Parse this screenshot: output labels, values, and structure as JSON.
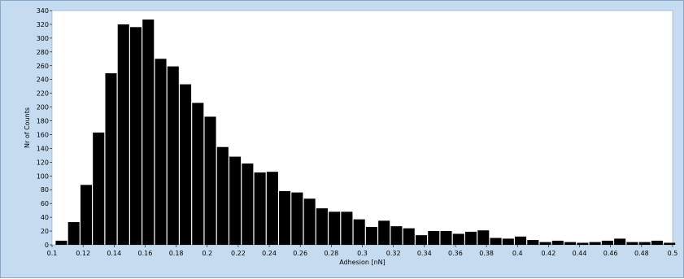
{
  "chart_data": {
    "type": "bar",
    "title": "",
    "xlabel": "Adhesion [nN]",
    "ylabel": "Nr of Counts",
    "xlim": [
      0.1,
      0.5
    ],
    "ylim": [
      0,
      340
    ],
    "grid": false,
    "x_ticks": [
      "0.1",
      "0.12",
      "0.14",
      "0.16",
      "0.18",
      "0.2",
      "0.22",
      "0.24",
      "0.26",
      "0.28",
      "0.3",
      "0.32",
      "0.34",
      "0.36",
      "0.38",
      "0.4",
      "0.42",
      "0.44",
      "0.46",
      "0.48",
      "0.5"
    ],
    "y_ticks": [
      "0",
      "20",
      "40",
      "60",
      "80",
      "100",
      "120",
      "140",
      "160",
      "180",
      "200",
      "220",
      "240",
      "260",
      "280",
      "300",
      "320",
      "340"
    ],
    "bin_width": 0.008,
    "x": [
      0.102,
      0.11,
      0.118,
      0.126,
      0.134,
      0.142,
      0.15,
      0.158,
      0.166,
      0.174,
      0.182,
      0.19,
      0.198,
      0.206,
      0.214,
      0.222,
      0.23,
      0.238,
      0.246,
      0.254,
      0.262,
      0.27,
      0.278,
      0.286,
      0.294,
      0.302,
      0.31,
      0.318,
      0.326,
      0.334,
      0.342,
      0.35,
      0.358,
      0.366,
      0.374,
      0.382,
      0.39,
      0.398,
      0.406,
      0.414,
      0.422,
      0.43,
      0.438,
      0.446,
      0.454,
      0.462,
      0.47,
      0.478,
      0.486,
      0.494
    ],
    "values": [
      6,
      33,
      87,
      163,
      249,
      320,
      316,
      327,
      270,
      259,
      233,
      206,
      186,
      142,
      128,
      118,
      105,
      106,
      78,
      76,
      67,
      53,
      48,
      48,
      37,
      26,
      35,
      27,
      24,
      14,
      20,
      20,
      16,
      19,
      21,
      10,
      9,
      12,
      7,
      4,
      6,
      4,
      3,
      4,
      6,
      9,
      4,
      4,
      6,
      3
    ],
    "colors": {
      "bar": "#000000",
      "plot_bg": "#ffffff",
      "frame_bg": "#c5dcf0",
      "border": "#8da6c2"
    }
  }
}
